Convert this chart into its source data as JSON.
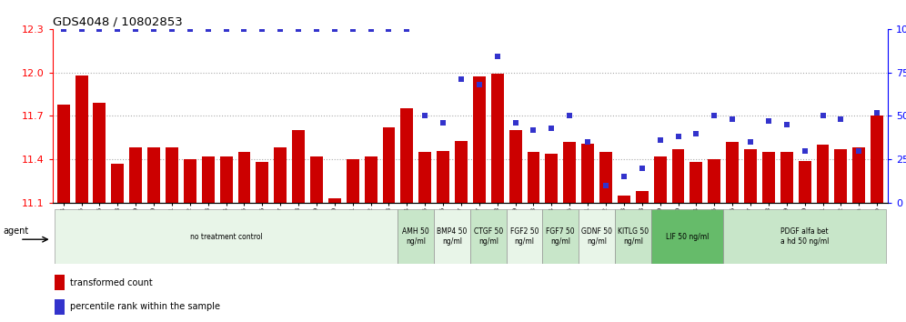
{
  "title": "GDS4048 / 10802853",
  "bar_values": [
    11.78,
    11.98,
    11.79,
    11.37,
    11.48,
    11.48,
    11.48,
    11.4,
    11.42,
    11.42,
    11.45,
    11.38,
    11.48,
    11.6,
    11.42,
    11.13,
    11.4,
    11.42,
    11.62,
    11.75,
    11.45,
    11.46,
    11.53,
    11.97,
    11.99,
    11.6,
    11.45,
    11.44,
    11.52,
    11.51,
    11.45,
    11.15,
    11.18,
    11.42,
    11.47,
    11.38,
    11.4,
    11.52,
    11.47,
    11.45,
    11.45,
    11.39,
    11.5,
    11.47,
    11.48,
    11.7
  ],
  "percentile_values": [
    100,
    100,
    100,
    100,
    100,
    100,
    100,
    100,
    100,
    100,
    100,
    100,
    100,
    100,
    100,
    100,
    100,
    100,
    100,
    100,
    50,
    46,
    71,
    68,
    84,
    46,
    42,
    43,
    50,
    35,
    10,
    15,
    20,
    36,
    38,
    40,
    50,
    48,
    35,
    47,
    45,
    30,
    50,
    48,
    30,
    52
  ],
  "sample_labels": [
    "GSM509254",
    "GSM509255",
    "GSM509256",
    "GSM510028",
    "GSM510029",
    "GSM510030",
    "GSM510031",
    "GSM510032",
    "GSM510033",
    "GSM510034",
    "GSM510035",
    "GSM510036",
    "GSM510037",
    "GSM510038",
    "GSM510039",
    "GSM510040",
    "GSM510041",
    "GSM510042",
    "GSM510043",
    "GSM510044",
    "GSM510045",
    "GSM510046",
    "GSM510047",
    "GSM509257",
    "GSM509258",
    "GSM509259",
    "GSM510063",
    "GSM510064",
    "GSM510065",
    "GSM510051",
    "GSM510052",
    "GSM510053",
    "GSM510048",
    "GSM510049",
    "GSM510050",
    "GSM510054",
    "GSM510055",
    "GSM510056",
    "GSM510057",
    "GSM510058",
    "GSM510059",
    "GSM510060",
    "GSM510061",
    "GSM510062",
    "GSM510XXa",
    "GSM510XXb"
  ],
  "agent_groups": [
    {
      "label": "no treatment control",
      "start": 0,
      "end": 19,
      "color": "#e8f5e8"
    },
    {
      "label": "AMH 50\nng/ml",
      "start": 19,
      "end": 21,
      "color": "#c8e6c9"
    },
    {
      "label": "BMP4 50\nng/ml",
      "start": 21,
      "end": 23,
      "color": "#e8f5e8"
    },
    {
      "label": "CTGF 50\nng/ml",
      "start": 23,
      "end": 25,
      "color": "#c8e6c9"
    },
    {
      "label": "FGF2 50\nng/ml",
      "start": 25,
      "end": 27,
      "color": "#e8f5e8"
    },
    {
      "label": "FGF7 50\nng/ml",
      "start": 27,
      "end": 29,
      "color": "#c8e6c9"
    },
    {
      "label": "GDNF 50\nng/ml",
      "start": 29,
      "end": 31,
      "color": "#e8f5e8"
    },
    {
      "label": "KITLG 50\nng/ml",
      "start": 31,
      "end": 33,
      "color": "#c8e6c9"
    },
    {
      "label": "LIF 50 ng/ml",
      "start": 33,
      "end": 37,
      "color": "#66bb6a"
    },
    {
      "label": "PDGF alfa bet\na hd 50 ng/ml",
      "start": 37,
      "end": 46,
      "color": "#c8e6c9"
    }
  ],
  "ylim_left": [
    11.1,
    12.3
  ],
  "ylim_right": [
    0,
    100
  ],
  "yticks_left": [
    11.1,
    11.4,
    11.7,
    12.0,
    12.3
  ],
  "yticks_right": [
    0,
    25,
    50,
    75,
    100
  ],
  "bar_color": "#cc0000",
  "dot_color": "#3333cc",
  "bar_width": 0.7,
  "bg_color": "#ffffff",
  "grid_color": "#aaaaaa",
  "grid_yticks": [
    11.4,
    11.7,
    12.0
  ]
}
